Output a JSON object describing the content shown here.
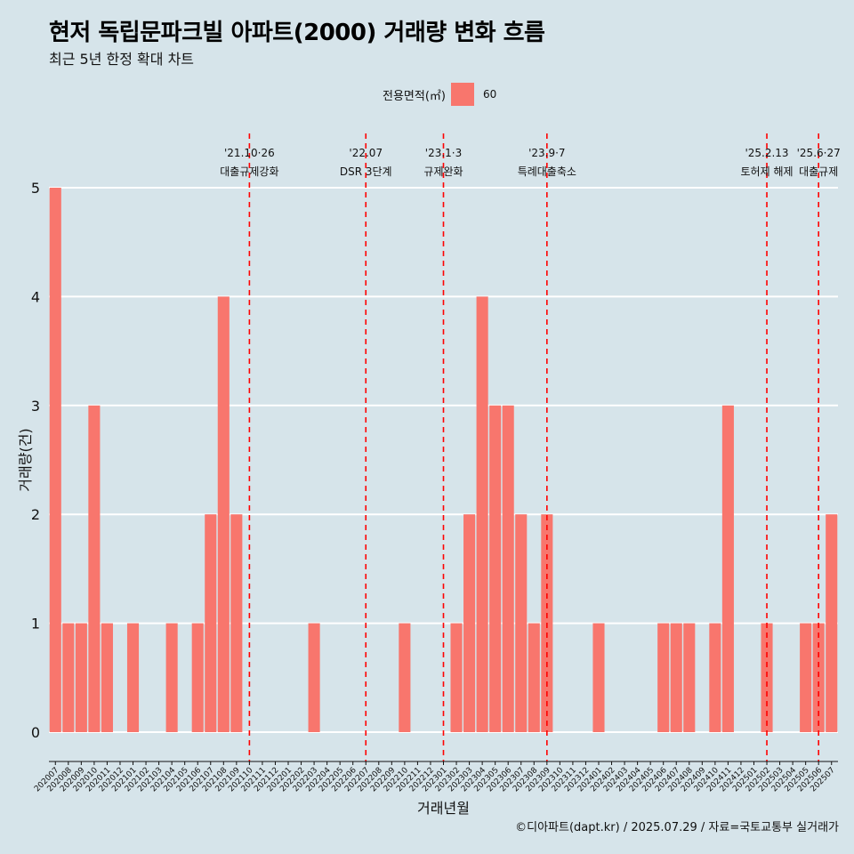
{
  "header": {
    "title": "현저 독립문파크빌 아파트(2000) 거래량 변화 흐름",
    "subtitle": "최근 5년 한정 확대 차트"
  },
  "legend": {
    "title": "전용면적(㎡)",
    "label": "60",
    "color": "#f8766d"
  },
  "footer": "©디아파트(dapt.kr) / 2025.07.29 / 자료=국토교통부 실거래가",
  "colors": {
    "background": "#d6e4ea",
    "bar": "#f8766d",
    "event_line": "#ff0000",
    "grid": "#ffffff"
  },
  "chart_data": {
    "type": "bar",
    "xlabel": "거래년월",
    "ylabel": "거래량(건)",
    "ylim": [
      0,
      5
    ],
    "yticks": [
      0,
      1,
      2,
      3,
      4,
      5
    ],
    "grid": true,
    "legend_position": "top",
    "categories": [
      "202007",
      "202008",
      "202009",
      "202010",
      "202011",
      "202012",
      "202101",
      "202102",
      "202103",
      "202104",
      "202105",
      "202106",
      "202107",
      "202108",
      "202109",
      "202110",
      "202111",
      "202112",
      "202201",
      "202202",
      "202203",
      "202204",
      "202205",
      "202206",
      "202207",
      "202208",
      "202209",
      "202210",
      "202211",
      "202212",
      "202301",
      "202302",
      "202303",
      "202304",
      "202305",
      "202306",
      "202307",
      "202308",
      "202309",
      "202310",
      "202311",
      "202312",
      "202401",
      "202402",
      "202403",
      "202404",
      "202405",
      "202406",
      "202407",
      "202408",
      "202409",
      "202410",
      "202411",
      "202412",
      "202501",
      "202502",
      "202503",
      "202504",
      "202505",
      "202506",
      "202507"
    ],
    "series": [
      {
        "name": "60",
        "values": [
          5,
          1,
          1,
          3,
          1,
          0,
          1,
          0,
          0,
          1,
          0,
          1,
          2,
          4,
          2,
          0,
          0,
          0,
          0,
          0,
          1,
          0,
          0,
          0,
          0,
          0,
          0,
          1,
          0,
          0,
          0,
          1,
          2,
          4,
          3,
          3,
          2,
          1,
          2,
          0,
          0,
          0,
          1,
          0,
          0,
          0,
          0,
          1,
          1,
          1,
          0,
          1,
          3,
          0,
          0,
          1,
          0,
          0,
          1,
          1,
          2
        ]
      }
    ],
    "annotations": [
      {
        "at": "202110",
        "date": "'21.10·26",
        "label": "대출규제강화"
      },
      {
        "at": "202207",
        "date": "'22.07",
        "label": "DSR 3단계"
      },
      {
        "at": "202301",
        "date": "'23.1·3",
        "label": "규제완화"
      },
      {
        "at": "202309",
        "date": "'23.9·7",
        "label": "특례대출축소"
      },
      {
        "at": "202502",
        "date": "'25.2.13",
        "label": "토허제 해제"
      },
      {
        "at": "202506",
        "date": "'25.6·27",
        "label": "대출규제"
      }
    ]
  }
}
